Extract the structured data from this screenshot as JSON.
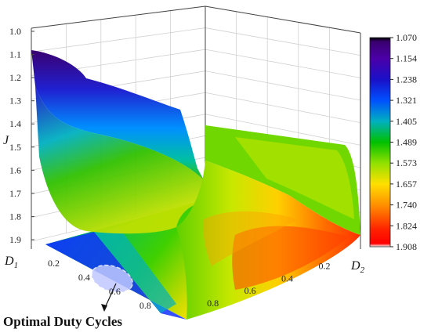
{
  "chart_data": {
    "type": "surface3d",
    "zlabel": "J",
    "xlabel": {
      "letter": "D",
      "sub": "1"
    },
    "ylabel": {
      "letter": "D",
      "sub": "2"
    },
    "z_ticks": [
      "1.0",
      "1.1",
      "1.2",
      "1.3",
      "1.4",
      "1.5",
      "1.6",
      "1.7",
      "1.8",
      "1.9"
    ],
    "zlim": [
      1.0,
      1.9
    ],
    "zlim_note": "z axis inverted (1.0 at top)",
    "d1_ticks": [
      "0.2",
      "0.4",
      "0.6",
      "0.8"
    ],
    "d2_ticks": [
      "0.2",
      "0.4",
      "0.6",
      "0.8"
    ],
    "colorbar_labels": [
      "1.070",
      "1.154",
      "1.238",
      "1.321",
      "1.405",
      "1.489",
      "1.573",
      "1.657",
      "1.740",
      "1.824",
      "1.908"
    ],
    "colorbar_colors": [
      "#3a0070",
      "#4b00a8",
      "#1a10c8",
      "#0050ff",
      "#00b0c0",
      "#00c000",
      "#90e000",
      "#ffe000",
      "#ff9000",
      "#ff3000",
      "#ff0000"
    ],
    "surface_profile": {
      "description_values_J_vs_D1_at_low_D2": [
        [
          0.0,
          1.08
        ],
        [
          0.1,
          1.2
        ],
        [
          0.2,
          1.33
        ],
        [
          0.3,
          1.39
        ],
        [
          0.4,
          1.4
        ],
        [
          0.5,
          1.41
        ],
        [
          0.6,
          1.45
        ],
        [
          0.7,
          1.55
        ],
        [
          0.8,
          1.9
        ]
      ],
      "description_values_J_vs_D2_at_high_D1": [
        [
          0.8,
          1.9
        ],
        [
          0.6,
          1.85
        ],
        [
          0.4,
          1.75
        ],
        [
          0.3,
          1.6
        ],
        [
          0.2,
          1.49
        ],
        [
          0.1,
          1.47
        ],
        [
          0.0,
          1.46
        ]
      ]
    },
    "annotation": "Optimal Duty Cycles",
    "grid": true
  }
}
